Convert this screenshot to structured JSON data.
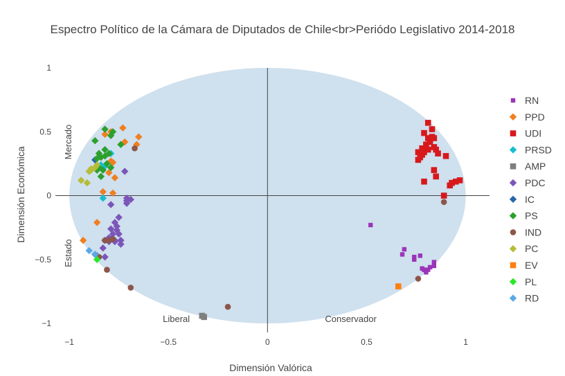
{
  "chart_data": {
    "type": "scatter",
    "title": "Espectro Político de la Cámara de Diputados de Chile<br>Periódo Legislativo 2014-2018",
    "xlabel": "Dimensión Valórica",
    "ylabel": "Dimensión Económica",
    "xlim": [
      -1.07,
      1.12
    ],
    "ylim": [
      -1.07,
      1.0
    ],
    "x_ticks": [
      -1,
      -0.5,
      0,
      0.5,
      1
    ],
    "x_tick_labels": [
      "−1",
      "−0.5",
      "0",
      "0.5",
      "1"
    ],
    "y_ticks": [
      -1,
      -0.5,
      0,
      0.5,
      1
    ],
    "y_tick_labels": [
      "−1",
      "−0.5",
      "0",
      "0.5",
      "1"
    ],
    "grid": false,
    "zero_lines": true,
    "background_shape": {
      "type": "ellipse",
      "center": [
        0,
        0
      ],
      "rx": 1,
      "ry": 1,
      "color": "#cfe0ee"
    },
    "annotations": [
      {
        "text": "Mercado",
        "x": -0.99,
        "y": 0.42,
        "rotation": -90
      },
      {
        "text": "Estado",
        "x": -0.99,
        "y": -0.45,
        "rotation": -90
      },
      {
        "text": "Liberal",
        "x": -0.46,
        "y": -0.99,
        "rotation": 0
      },
      {
        "text": "Conservador",
        "x": 0.42,
        "y": -0.99,
        "rotation": 0
      }
    ],
    "legend_position": "right",
    "series": [
      {
        "name": "RN",
        "color": "#9b35b8",
        "symbol": "square-small",
        "x": [
          0.52,
          0.69,
          0.68,
          0.74,
          0.74,
          0.77,
          0.78,
          0.79,
          0.8,
          0.81,
          0.84,
          0.84,
          0.82,
          0.79
        ],
        "y": [
          -0.23,
          -0.42,
          -0.46,
          -0.48,
          -0.5,
          -0.47,
          -0.57,
          -0.58,
          -0.6,
          -0.58,
          -0.52,
          -0.55,
          -0.56,
          -0.58
        ]
      },
      {
        "name": "PPD",
        "color": "#ef7f22",
        "symbol": "diamond",
        "x": [
          -0.73,
          -0.72,
          -0.65,
          -0.66,
          -0.78,
          -0.8,
          -0.77,
          -0.83,
          -0.84,
          -0.79,
          -0.78,
          -0.86,
          -0.93,
          -0.79,
          -0.82
        ],
        "y": [
          0.53,
          0.42,
          0.46,
          0.4,
          0.26,
          0.18,
          0.14,
          0.03,
          0.23,
          0.27,
          0.02,
          -0.21,
          -0.35,
          0.5,
          0.48
        ]
      },
      {
        "name": "UDI",
        "color": "#d7191c",
        "symbol": "square",
        "x": [
          0.79,
          0.81,
          0.83,
          0.84,
          0.82,
          0.8,
          0.78,
          0.76,
          0.77,
          0.84,
          0.85,
          0.86,
          0.9,
          0.92,
          0.93,
          0.95,
          0.97,
          0.79,
          0.81,
          0.83,
          0.82,
          0.76,
          0.78,
          0.79,
          0.81,
          0.8,
          0.89,
          0.84,
          0.85
        ],
        "y": [
          0.49,
          0.57,
          0.52,
          0.45,
          0.42,
          0.39,
          0.37,
          0.34,
          0.3,
          0.38,
          0.36,
          0.33,
          0.31,
          0.08,
          0.1,
          0.11,
          0.12,
          0.11,
          0.45,
          0.46,
          0.44,
          0.28,
          0.32,
          0.34,
          0.36,
          0.4,
          0.0,
          0.2,
          0.15
        ]
      },
      {
        "name": "PRSD",
        "color": "#17becf",
        "symbol": "diamond",
        "x": [
          -0.79,
          -0.82,
          -0.81,
          -0.84,
          -0.83
        ],
        "y": [
          0.33,
          0.23,
          0.25,
          0.24,
          -0.02
        ]
      },
      {
        "name": "AMP",
        "color": "#7f7f7f",
        "symbol": "square",
        "x": [
          -0.33,
          -0.32
        ],
        "y": [
          -0.94,
          -0.95
        ]
      },
      {
        "name": "PDC",
        "color": "#7b56b8",
        "symbol": "diamond",
        "x": [
          -0.71,
          -0.71,
          -0.69,
          -0.71,
          -0.79,
          -0.75,
          -0.77,
          -0.76,
          -0.79,
          -0.76,
          -0.75,
          -0.78,
          -0.8,
          -0.79,
          -0.77,
          -0.74,
          -0.77,
          -0.74,
          -0.82,
          -0.8,
          -0.83,
          -0.87,
          -0.86,
          -0.82,
          -0.72
        ],
        "y": [
          -0.02,
          -0.04,
          -0.03,
          -0.06,
          -0.07,
          -0.17,
          -0.21,
          -0.24,
          -0.26,
          -0.27,
          -0.3,
          -0.3,
          -0.33,
          -0.34,
          -0.35,
          -0.35,
          -0.36,
          -0.38,
          -0.35,
          -0.36,
          -0.41,
          -0.46,
          -0.47,
          -0.48,
          0.19
        ]
      },
      {
        "name": "IC",
        "color": "#2a66a8",
        "symbol": "diamond",
        "x": [
          -0.87
        ],
        "y": [
          0.28
        ]
      },
      {
        "name": "PS",
        "color": "#2ca02c",
        "symbol": "diamond",
        "x": [
          -0.82,
          -0.78,
          -0.79,
          -0.87,
          -0.85,
          -0.82,
          -0.8,
          -0.74,
          -0.84,
          -0.86,
          -0.81,
          -0.79,
          -0.83,
          -0.86,
          -0.84,
          -0.85,
          -0.82
        ],
        "y": [
          0.52,
          0.5,
          0.47,
          0.43,
          0.33,
          0.36,
          0.33,
          0.4,
          0.3,
          0.29,
          0.25,
          0.22,
          0.2,
          0.2,
          0.15,
          0.22,
          0.31
        ]
      },
      {
        "name": "IND",
        "color": "#8c564b",
        "symbol": "circle",
        "x": [
          -0.67,
          0.89,
          -0.2,
          -0.69,
          -0.81,
          -0.85,
          -0.78,
          -0.8,
          -0.82,
          0.76
        ],
        "y": [
          0.37,
          -0.05,
          -0.87,
          -0.72,
          -0.58,
          -0.48,
          -0.34,
          -0.35,
          -0.35,
          -0.65
        ]
      },
      {
        "name": "PC",
        "color": "#b5bd3a",
        "symbol": "diamond",
        "x": [
          -0.94,
          -0.91,
          -0.9,
          -0.89,
          -0.87,
          -0.86,
          -0.89
        ],
        "y": [
          0.12,
          0.1,
          0.19,
          0.21,
          0.22,
          0.24,
          0.2
        ]
      },
      {
        "name": "EV",
        "color": "#ff7f0e",
        "symbol": "square",
        "x": [
          0.66
        ],
        "y": [
          -0.71
        ]
      },
      {
        "name": "PL",
        "color": "#2ae82a",
        "symbol": "diamond",
        "x": [
          -0.86
        ],
        "y": [
          -0.5
        ]
      },
      {
        "name": "RD",
        "color": "#5aa9e6",
        "symbol": "diamond",
        "x": [
          -0.9,
          -0.87
        ],
        "y": [
          -0.43,
          -0.46
        ]
      }
    ]
  }
}
